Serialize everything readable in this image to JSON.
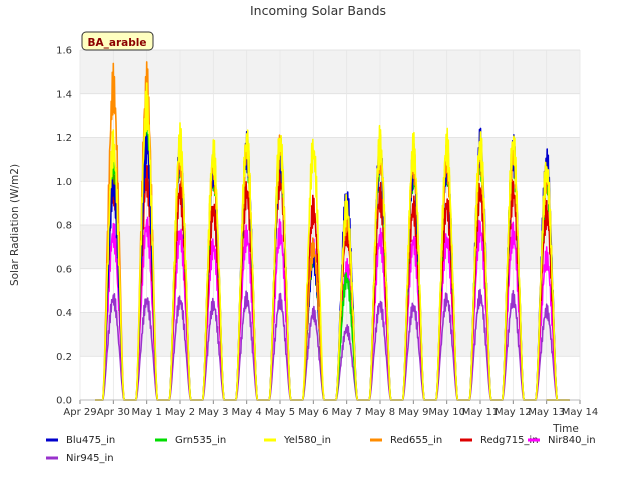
{
  "chart_data": {
    "type": "line",
    "title": "Incoming Solar Bands",
    "ylabel": "Solar Radiation (W/m2)",
    "xlabel": "Time",
    "site_label": "BA_arable",
    "ylim": [
      0,
      1.6
    ],
    "xlim_days": [
      0,
      15
    ],
    "x_tick_labels": [
      "Apr 29",
      "Apr 30",
      "May 1",
      "May 2",
      "May 3",
      "May 4",
      "May 5",
      "May 6",
      "May 7",
      "May 8",
      "May 9",
      "May 10",
      "May 11",
      "May 12",
      "May 13",
      "May 14"
    ],
    "y_tick_labels": [
      "0.0",
      "0.2",
      "0.4",
      "0.6",
      "0.8",
      "1.0",
      "1.2",
      "1.4",
      "1.6"
    ],
    "y_ticks": [
      0,
      0.2,
      0.4,
      0.6,
      0.8,
      1.0,
      1.2,
      1.4,
      1.6
    ],
    "grid": true,
    "background_bands": "alternating light gray",
    "legend_position": "bottom",
    "days": [
      "Apr 30",
      "May 1",
      "May 2",
      "May 3",
      "May 4",
      "May 5",
      "May 6",
      "May 7",
      "May 8",
      "May 9",
      "May 10",
      "May 11",
      "May 12",
      "May 13"
    ],
    "series": [
      {
        "name": "Blu475_in",
        "color": "#0000cc",
        "daily_peak": [
          1.05,
          1.25,
          1.22,
          1.15,
          1.23,
          1.22,
          0.7,
          1.0,
          1.22,
          1.15,
          1.17,
          1.25,
          1.22,
          1.17
        ]
      },
      {
        "name": "Grn535_in",
        "color": "#00dd00",
        "daily_peak": [
          1.15,
          1.3,
          1.2,
          1.13,
          1.22,
          1.23,
          0.7,
          0.6,
          1.2,
          1.13,
          1.16,
          1.2,
          1.21,
          1.1
        ]
      },
      {
        "name": "Yel580_in",
        "color": "#ffff00",
        "daily_peak": [
          1.25,
          1.45,
          1.27,
          1.21,
          1.27,
          1.27,
          1.23,
          0.95,
          1.26,
          1.23,
          1.25,
          1.25,
          1.26,
          1.13
        ]
      },
      {
        "name": "Red655_in",
        "color": "#ff8c00",
        "daily_peak": [
          1.54,
          1.55,
          1.2,
          1.16,
          1.24,
          1.25,
          0.75,
          0.9,
          1.22,
          1.18,
          1.18,
          1.2,
          1.22,
          1.1
        ]
      },
      {
        "name": "Redg715_in",
        "color": "#dd0000",
        "daily_peak": [
          1.05,
          1.09,
          1.03,
          0.94,
          1.03,
          1.1,
          0.94,
          0.83,
          1.0,
          0.95,
          0.96,
          1.03,
          1.03,
          0.92
        ]
      },
      {
        "name": "Nir840_in",
        "color": "#ff00ff",
        "daily_peak": [
          0.82,
          0.86,
          0.82,
          0.76,
          0.81,
          0.83,
          0.74,
          0.65,
          0.8,
          0.78,
          0.79,
          0.84,
          0.82,
          0.7
        ]
      },
      {
        "name": "Nir945_in",
        "color": "#9932cc",
        "daily_peak": [
          0.5,
          0.49,
          0.49,
          0.47,
          0.5,
          0.49,
          0.43,
          0.35,
          0.47,
          0.46,
          0.5,
          0.51,
          0.5,
          0.44
        ]
      }
    ]
  }
}
